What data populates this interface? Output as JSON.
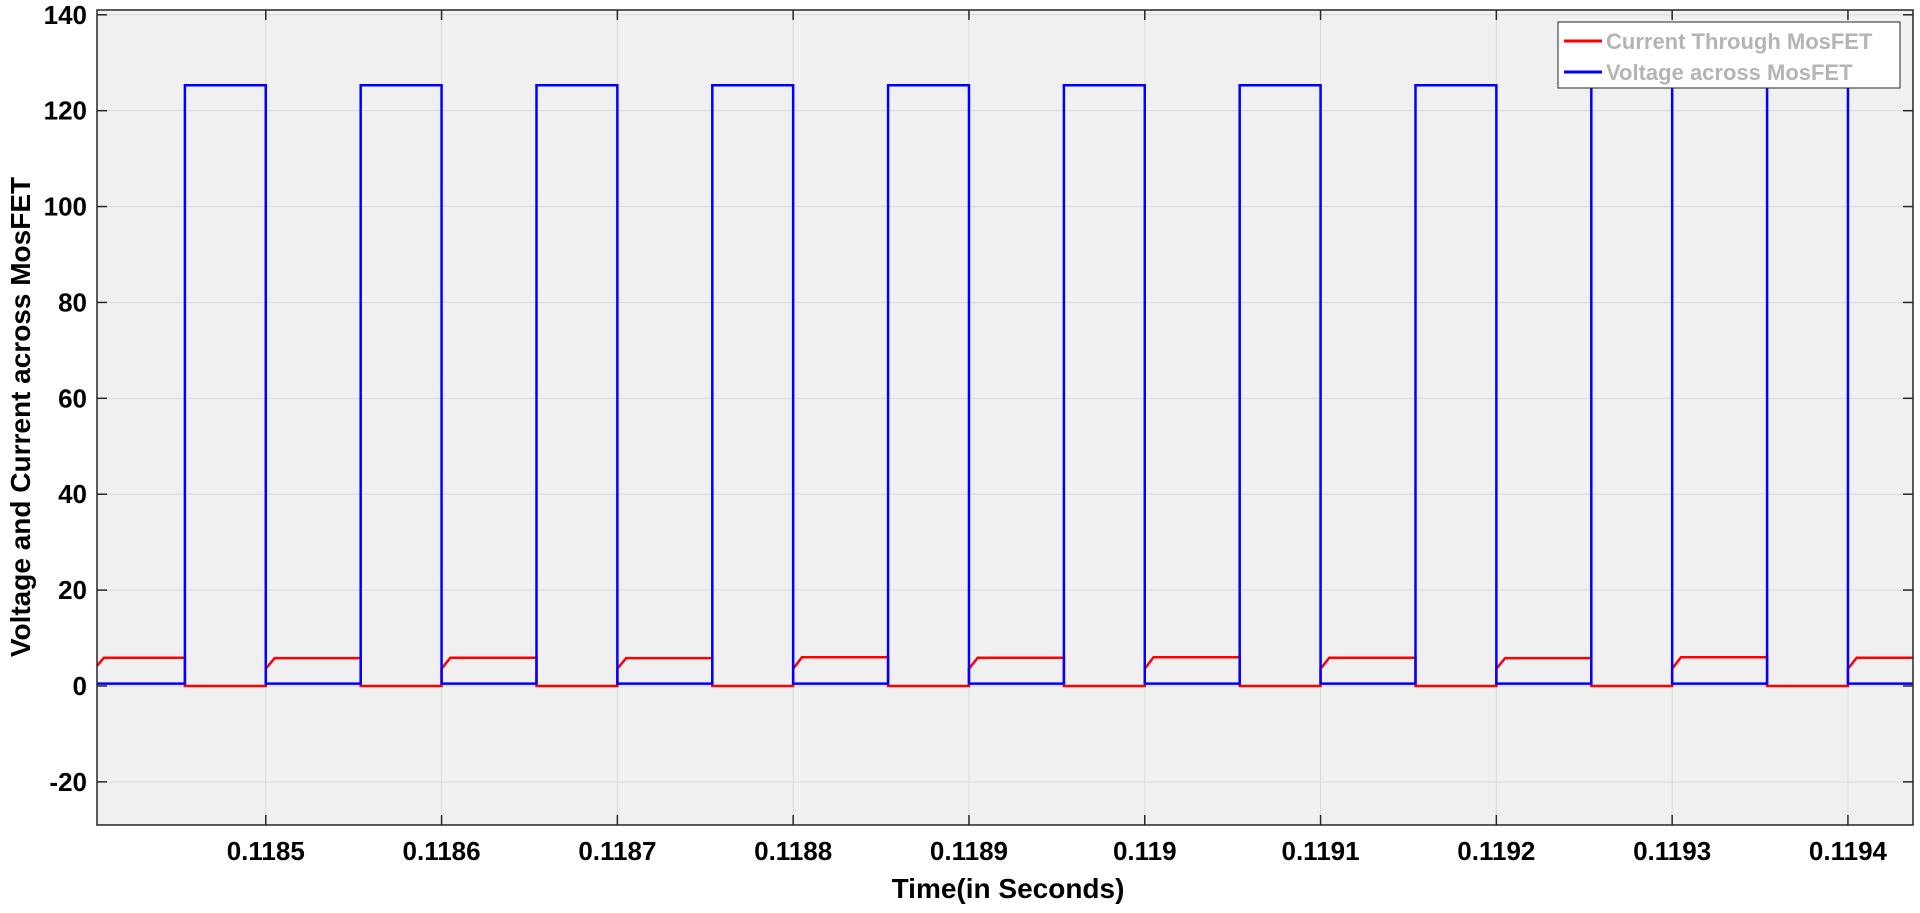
{
  "chart_data": {
    "type": "line",
    "title": "",
    "xlabel": "Time(in Seconds)",
    "ylabel": "Voltage  and Current across MosFET",
    "xlim": [
      0.118404,
      0.119437
    ],
    "ylim": [
      -29,
      141
    ],
    "xticks": [
      {
        "value": 0.1185,
        "label": "0.1185"
      },
      {
        "value": 0.1186,
        "label": "0.1186"
      },
      {
        "value": 0.1187,
        "label": "0.1187"
      },
      {
        "value": 0.1188,
        "label": "0.1188"
      },
      {
        "value": 0.1189,
        "label": "0.1189"
      },
      {
        "value": 0.119,
        "label": "0.119"
      },
      {
        "value": 0.1191,
        "label": "0.1191"
      },
      {
        "value": 0.1192,
        "label": "0.1192"
      },
      {
        "value": 0.1193,
        "label": "0.1193"
      },
      {
        "value": 0.1194,
        "label": "0.1194"
      }
    ],
    "yticks": [
      {
        "value": -20,
        "label": "-20"
      },
      {
        "value": 0,
        "label": "0"
      },
      {
        "value": 20,
        "label": "20"
      },
      {
        "value": 40,
        "label": "40"
      },
      {
        "value": 60,
        "label": "60"
      },
      {
        "value": 80,
        "label": "80"
      },
      {
        "value": 100,
        "label": "100"
      },
      {
        "value": 120,
        "label": "120"
      },
      {
        "value": 140,
        "label": "140"
      }
    ],
    "grid": true,
    "legend_position": "top-right",
    "plot_background": "#f0f0f0",
    "series": [
      {
        "name": "Current Through MosFET",
        "color": "#ff0000",
        "x": [
          0.118404,
          0.118408,
          0.118435,
          0.118454,
          0.118454,
          0.1185,
          0.1185,
          0.118505,
          0.118535,
          0.118554,
          0.118554,
          0.1186,
          0.1186,
          0.118605,
          0.118635,
          0.118654,
          0.118654,
          0.1187,
          0.1187,
          0.118705,
          0.118735,
          0.118754,
          0.118754,
          0.1188,
          0.1188,
          0.118805,
          0.118835,
          0.118854,
          0.118854,
          0.1189,
          0.1189,
          0.118905,
          0.118935,
          0.118954,
          0.118954,
          0.119,
          0.119,
          0.119005,
          0.119035,
          0.119054,
          0.119054,
          0.1191,
          0.1191,
          0.119105,
          0.119135,
          0.119154,
          0.119154,
          0.1192,
          0.1192,
          0.119205,
          0.119235,
          0.119254,
          0.119254,
          0.1193,
          0.1193,
          0.119305,
          0.119335,
          0.119354,
          0.119354,
          0.1194,
          0.1194,
          0.119405,
          0.119437
        ],
        "y": [
          4.2,
          5.9,
          5.9,
          5.9,
          0,
          0,
          3.6,
          5.8,
          5.8,
          5.8,
          0,
          0,
          3.6,
          5.9,
          5.9,
          5.9,
          0,
          0,
          3.6,
          5.8,
          5.8,
          5.8,
          0,
          0,
          3.6,
          6.0,
          6.0,
          6.0,
          0,
          0,
          3.6,
          5.9,
          5.9,
          5.9,
          0,
          0,
          3.6,
          6.0,
          6.0,
          6.0,
          0,
          0,
          3.6,
          5.9,
          5.9,
          5.9,
          0,
          0,
          3.6,
          5.8,
          5.8,
          5.8,
          0,
          0,
          3.6,
          6.0,
          6.0,
          6.0,
          0,
          0,
          3.6,
          5.9,
          5.9
        ]
      },
      {
        "name": "Voltage across MosFET",
        "color": "#0000ff",
        "x": [
          0.118404,
          0.118454,
          0.118454,
          0.1185,
          0.1185,
          0.118554,
          0.118554,
          0.1186,
          0.1186,
          0.118654,
          0.118654,
          0.1187,
          0.1187,
          0.118754,
          0.118754,
          0.1188,
          0.1188,
          0.118854,
          0.118854,
          0.1189,
          0.1189,
          0.118954,
          0.118954,
          0.119,
          0.119,
          0.119054,
          0.119054,
          0.1191,
          0.1191,
          0.119154,
          0.119154,
          0.1192,
          0.1192,
          0.119254,
          0.119254,
          0.1193,
          0.1193,
          0.119354,
          0.119354,
          0.1194,
          0.1194,
          0.119437
        ],
        "y": [
          0.5,
          0.5,
          125.3,
          125.3,
          0.5,
          0.5,
          125.3,
          125.3,
          0.5,
          0.5,
          125.3,
          125.3,
          0.5,
          0.5,
          125.3,
          125.3,
          0.5,
          0.5,
          125.3,
          125.3,
          0.5,
          0.5,
          125.3,
          125.3,
          0.5,
          0.5,
          125.3,
          125.3,
          0.5,
          0.5,
          125.3,
          125.3,
          0.5,
          0.5,
          125.3,
          125.3,
          0.5,
          0.5,
          125.3,
          125.3,
          0.5,
          0.5
        ]
      }
    ]
  }
}
